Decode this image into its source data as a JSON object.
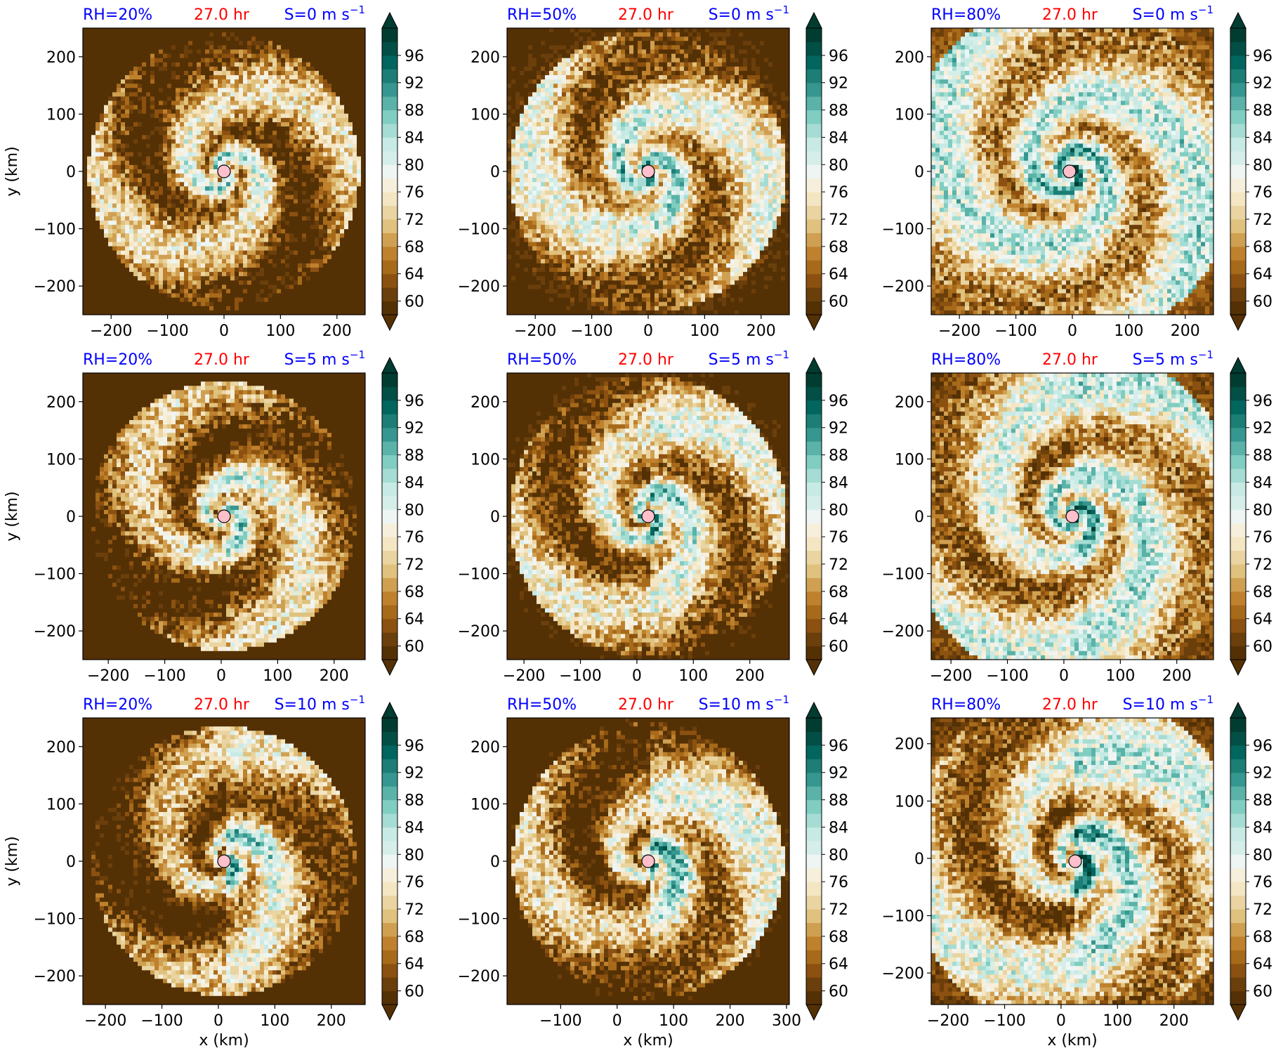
{
  "chart_data": [
    {
      "type": "heatmap",
      "panel": "a",
      "rh_label": "RH=20%",
      "time_label": "27.0 hr",
      "shear_label": "S=0 m s",
      "shear_exp": "−1",
      "rh": 20,
      "shear": 0,
      "xlabel": "",
      "ylabel": "y (km)",
      "xticks": [
        -200,
        -100,
        0,
        100,
        200
      ],
      "yticks": [
        -200,
        -100,
        0,
        100,
        200
      ],
      "xlim": [
        -250,
        250
      ],
      "ylim": [
        -250,
        250
      ],
      "center": [
        0,
        0
      ],
      "spiral_strength": 1.6,
      "inner_radius": 120,
      "radius": 240,
      "moist_level": 0.35
    },
    {
      "type": "heatmap",
      "panel": "b",
      "rh_label": "RH=50%",
      "time_label": "27.0 hr",
      "shear_label": "S=0 m s",
      "shear_exp": "−1",
      "rh": 50,
      "shear": 0,
      "xlabel": "",
      "ylabel": "",
      "xticks": [
        -200,
        -100,
        0,
        100,
        200
      ],
      "yticks": [
        -200,
        -100,
        0,
        100,
        200
      ],
      "xlim": [
        -250,
        250
      ],
      "ylim": [
        -250,
        250
      ],
      "center": [
        0,
        0
      ],
      "spiral_strength": 1.6,
      "inner_radius": 120,
      "radius": 245,
      "moist_level": 0.55
    },
    {
      "type": "heatmap",
      "panel": "c",
      "rh_label": "RH=80%",
      "time_label": "27.0 hr",
      "shear_label": "S=0 m s",
      "shear_exp": "−1",
      "rh": 80,
      "shear": 0,
      "xlabel": "",
      "ylabel": "",
      "xticks": [
        -200,
        -100,
        0,
        100,
        200
      ],
      "yticks": [
        -200,
        -100,
        0,
        100,
        200
      ],
      "xlim": [
        -250,
        250
      ],
      "ylim": [
        -250,
        250
      ],
      "center": [
        -5,
        0
      ],
      "spiral_strength": 1.9,
      "inner_radius": 90,
      "radius": 300,
      "moist_level": 0.75
    },
    {
      "type": "heatmap",
      "panel": "d",
      "rh_label": "RH=20%",
      "time_label": "27.0 hr",
      "shear_label": "S=5 m s",
      "shear_exp": "−1",
      "rh": 20,
      "shear": 5,
      "xlabel": "",
      "ylabel": "y (km)",
      "xticks": [
        -200,
        -100,
        0,
        100,
        200
      ],
      "yticks": [
        -200,
        -100,
        0,
        100,
        200
      ],
      "xlim": [
        -245,
        255
      ],
      "ylim": [
        -250,
        250
      ],
      "center": [
        5,
        0
      ],
      "spiral_strength": 1.6,
      "inner_radius": 120,
      "radius": 235,
      "moist_level": 0.35
    },
    {
      "type": "heatmap",
      "panel": "e",
      "rh_label": "RH=50%",
      "time_label": "27.0 hr",
      "shear_label": "S=5 m s",
      "shear_exp": "−1",
      "rh": 50,
      "shear": 5,
      "xlabel": "",
      "ylabel": "",
      "xticks": [
        -200,
        -100,
        0,
        100,
        200
      ],
      "yticks": [
        -200,
        -100,
        0,
        100,
        200
      ],
      "xlim": [
        -230,
        270
      ],
      "ylim": [
        -250,
        250
      ],
      "center": [
        20,
        0
      ],
      "spiral_strength": 1.7,
      "inner_radius": 110,
      "radius": 245,
      "moist_level": 0.5
    },
    {
      "type": "heatmap",
      "panel": "f",
      "rh_label": "RH=80%",
      "time_label": "27.0 hr",
      "shear_label": "S=5 m s",
      "shear_exp": "−1",
      "rh": 80,
      "shear": 5,
      "xlabel": "",
      "ylabel": "",
      "xticks": [
        -200,
        -100,
        0,
        100,
        200
      ],
      "yticks": [
        -200,
        -100,
        0,
        100,
        200
      ],
      "xlim": [
        -235,
        265
      ],
      "ylim": [
        -250,
        250
      ],
      "center": [
        15,
        0
      ],
      "spiral_strength": 1.9,
      "inner_radius": 90,
      "radius": 300,
      "moist_level": 0.7
    },
    {
      "type": "heatmap",
      "panel": "g",
      "rh_label": "RH=20%",
      "time_label": "27.0 hr",
      "shear_label": "S=10 m s",
      "shear_exp": "−1",
      "rh": 20,
      "shear": 10,
      "xlabel": "x (km)",
      "ylabel": "y (km)",
      "xticks": [
        -200,
        -100,
        0,
        100,
        200
      ],
      "yticks": [
        -200,
        -100,
        0,
        100,
        200
      ],
      "xlim": [
        -240,
        260
      ],
      "ylim": [
        -250,
        250
      ],
      "center": [
        10,
        0
      ],
      "spiral_strength": 1.5,
      "inner_radius": 120,
      "radius": 235,
      "moist_level": 0.35
    },
    {
      "type": "heatmap",
      "panel": "h",
      "rh_label": "RH=50%",
      "time_label": "27.0 hr",
      "shear_label": "S=10 m s",
      "shear_exp": "−1",
      "rh": 50,
      "shear": 10,
      "xlabel": "x (km)",
      "ylabel": "",
      "xticks": [
        -100,
        0,
        100,
        200,
        300
      ],
      "yticks": [
        -200,
        -100,
        0,
        100,
        200
      ],
      "xlim": [
        -195,
        305
      ],
      "ylim": [
        -250,
        250
      ],
      "center": [
        55,
        0
      ],
      "spiral_strength": 1.6,
      "inner_radius": 110,
      "radius": 240,
      "moist_level": 0.45
    },
    {
      "type": "heatmap",
      "panel": "i",
      "rh_label": "RH=80%",
      "time_label": "27.0 hr",
      "shear_label": "S=10 m s",
      "shear_exp": "−1",
      "rh": 80,
      "shear": 10,
      "xlabel": "x (km)",
      "ylabel": "",
      "xticks": [
        -200,
        -100,
        0,
        100,
        200
      ],
      "yticks": [
        -200,
        -100,
        0,
        100,
        200
      ],
      "xlim": [
        -230,
        270
      ],
      "ylim": [
        -255,
        245
      ],
      "center": [
        25,
        -5
      ],
      "spiral_strength": 1.8,
      "inner_radius": 90,
      "radius": 300,
      "moist_level": 0.65
    }
  ],
  "colorbar": {
    "ticks": [
      60,
      64,
      68,
      72,
      76,
      80,
      84,
      88,
      92,
      96
    ],
    "min": 58,
    "max": 100,
    "levels": [
      "#543005",
      "#6b3f0b",
      "#8c5110",
      "#a66a1a",
      "#bf812d",
      "#d0a052",
      "#dfc27d",
      "#ead4a1",
      "#f4e6c3",
      "#f6efdc",
      "#eef5f3",
      "#d6eeea",
      "#c7eae5",
      "#a5dcd3",
      "#80cdc1",
      "#5ab2a8",
      "#35978f",
      "#1c7e74",
      "#01665e",
      "#014f45",
      "#003c30"
    ]
  },
  "colors": {
    "title_blue": "#0000ff",
    "title_red": "#ff0000",
    "marker_fill": "#ffc0cb"
  }
}
